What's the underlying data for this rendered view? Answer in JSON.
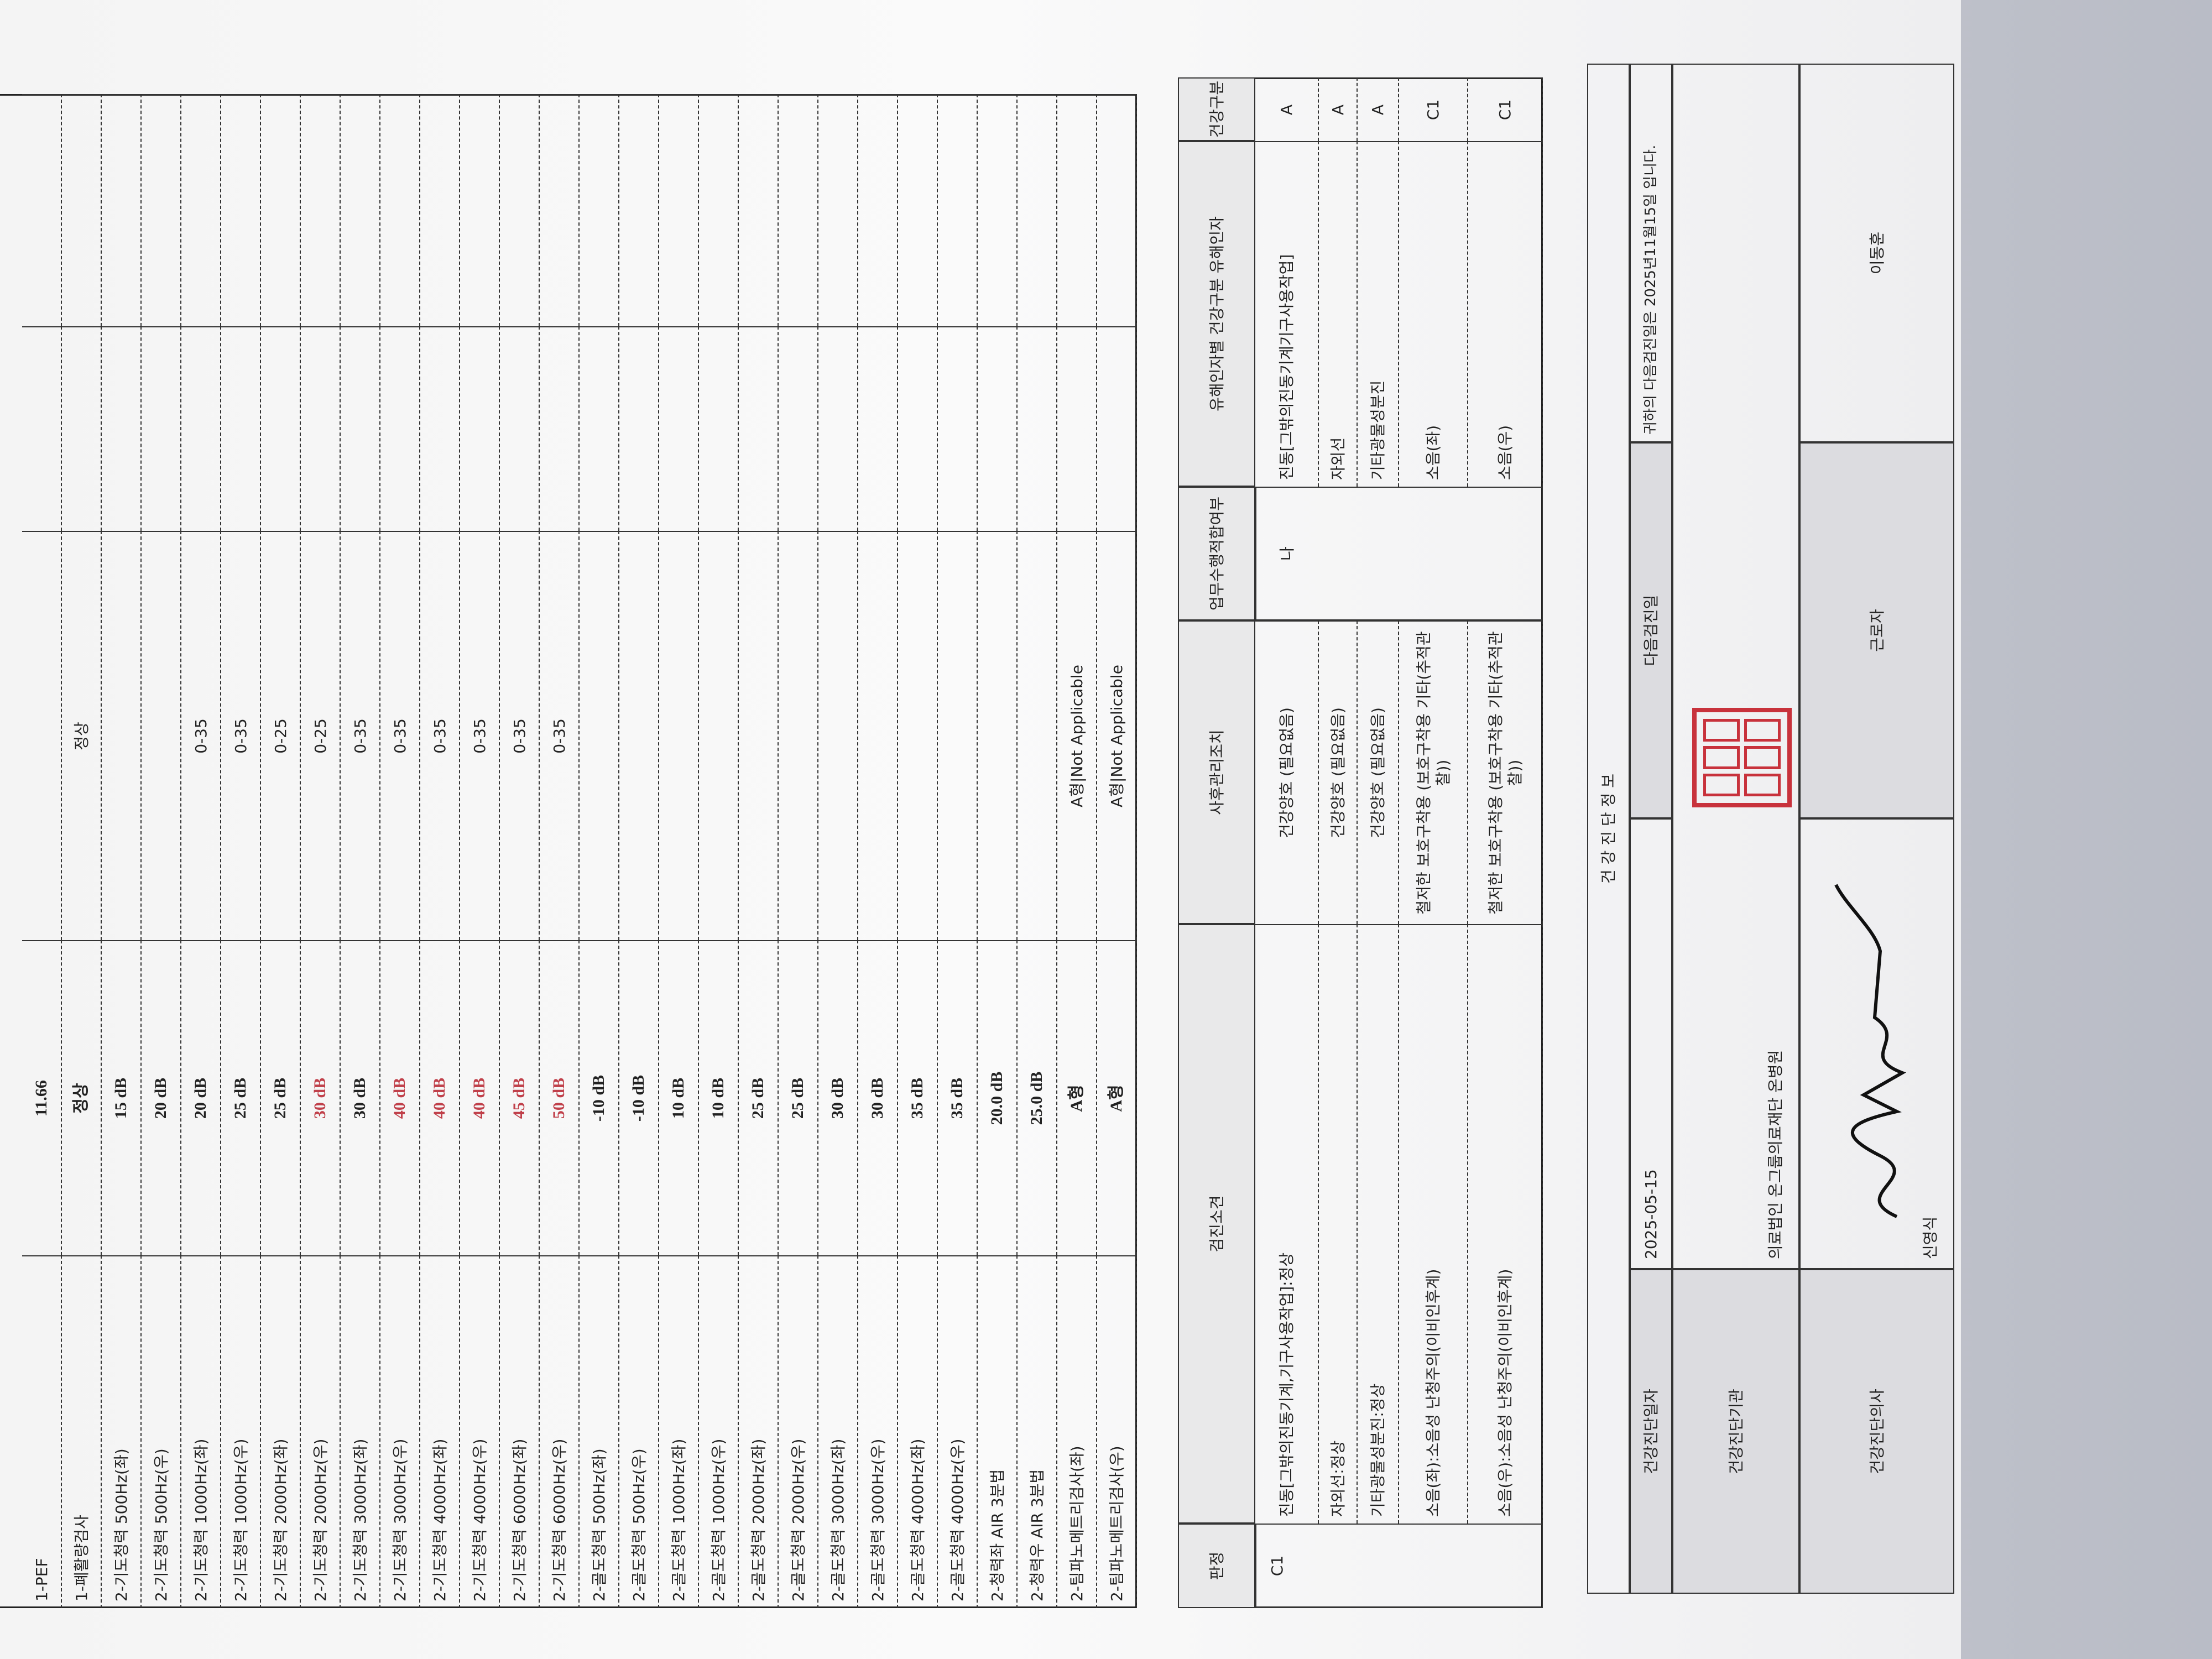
{
  "test_table": {
    "rows": [
      {
        "label": "1-PEF",
        "result": "11.66"
      },
      {
        "label": "1-폐활량검사",
        "result": "정상",
        "reference": "정상"
      },
      {
        "label": "2-기도청력 500Hz(좌)",
        "result": "15 dB"
      },
      {
        "label": "2-기도청력 500Hz(우)",
        "result": "20 dB"
      },
      {
        "label": "2-기도청력 1000Hz(좌)",
        "result": "20 dB",
        "reference": "0-35"
      },
      {
        "label": "2-기도청력 1000Hz(우)",
        "result": "25 dB",
        "reference": "0-35"
      },
      {
        "label": "2-기도청력 2000Hz(좌)",
        "result": "25 dB",
        "reference": "0-25"
      },
      {
        "label": "2-기도청력 2000Hz(우)",
        "result": "30 dB",
        "reference": "0-25",
        "abnormal": true
      },
      {
        "label": "2-기도청력 3000Hz(좌)",
        "result": "30 dB",
        "reference": "0-35"
      },
      {
        "label": "2-기도청력 3000Hz(우)",
        "result": "40 dB",
        "reference": "0-35",
        "abnormal": true
      },
      {
        "label": "2-기도청력 4000Hz(좌)",
        "result": "40 dB",
        "reference": "0-35",
        "abnormal": true
      },
      {
        "label": "2-기도청력 4000Hz(우)",
        "result": "40 dB",
        "reference": "0-35",
        "abnormal": true
      },
      {
        "label": "2-기도청력 6000Hz(좌)",
        "result": "45 dB",
        "reference": "0-35",
        "abnormal": true
      },
      {
        "label": "2-기도청력 6000Hz(우)",
        "result": "50 dB",
        "reference": "0-35",
        "abnormal": true
      },
      {
        "label": "2-골도청력 500Hz(좌)",
        "result": "-10 dB"
      },
      {
        "label": "2-골도청력 500Hz(우)",
        "result": "-10 dB"
      },
      {
        "label": "2-골도청력 1000Hz(좌)",
        "result": "10 dB"
      },
      {
        "label": "2-골도청력 1000Hz(우)",
        "result": "10 dB"
      },
      {
        "label": "2-골도청력 2000Hz(좌)",
        "result": "25 dB"
      },
      {
        "label": "2-골도청력 2000Hz(우)",
        "result": "25 dB"
      },
      {
        "label": "2-골도청력 3000Hz(좌)",
        "result": "30 dB"
      },
      {
        "label": "2-골도청력 3000Hz(우)",
        "result": "30 dB"
      },
      {
        "label": "2-골도청력 4000Hz(좌)",
        "result": "35 dB"
      },
      {
        "label": "2-골도청력 4000Hz(우)",
        "result": "35 dB"
      },
      {
        "label": "2-청력좌 AIR 3분법",
        "result": "20.0 dB"
      },
      {
        "label": "2-청력우 AIR 3분법",
        "result": "25.0 dB"
      },
      {
        "label": "2-팀파노메트리검사(좌)",
        "result": "A형",
        "reference": "A형|Not Applicable"
      },
      {
        "label": "2-팀파노메트리검사(우)",
        "result": "A형",
        "reference": "A형|Not Applicable"
      }
    ]
  },
  "assessment_table": {
    "headers": [
      "판정",
      "검진소견",
      "사후관리조치",
      "업무수행적합여부",
      "유해인자별 건강구분 유해인자",
      "건강구분"
    ],
    "judgment": "C1",
    "rows": [
      {
        "finding": "진동[그밖의진동기계,기구사용작업]:정상",
        "follow_up": "건강양호 (필요없음)",
        "work_fitness": "나",
        "factor": "진동[그밖의진동기계기구사용작업]",
        "grade": "A"
      },
      {
        "finding": "자외선:정상",
        "follow_up": "건강양호 (필요없음)",
        "factor": "자외선",
        "grade": "A"
      },
      {
        "finding": "기타광물성분진:정상",
        "follow_up": "건강양호 (필요없음)",
        "factor": "기타광물성분진",
        "grade": "A"
      },
      {
        "finding": "소음(좌):소음성 난청주의(이비인후계)",
        "follow_up": "철저한 보호구착용 (보호구착용 기타(추적관찰))",
        "factor": "소음(좌)",
        "grade": "C1"
      },
      {
        "finding": "소음(우):소음성 난청주의(이비인후계)",
        "follow_up": "철저한 보호구착용 (보호구착용 기타(추적관찰))",
        "factor": "소음(우)",
        "grade": "C1"
      }
    ]
  },
  "info_table": {
    "title": "건 강 진 단 정 보",
    "exam_date_label": "건강진단일자",
    "exam_date": "2025-05-15",
    "next_exam_label": "다음검진일",
    "next_exam_notice": "귀하의 다음검진일은 2025년11월15일 입니다.",
    "institution_label": "건강진단기관",
    "institution": "의료법인 온그룹의료재단 온병원",
    "doctor_label": "건강진단의사",
    "doctor": "신영식",
    "worker_label": "근로자",
    "worker": "이동훈"
  }
}
